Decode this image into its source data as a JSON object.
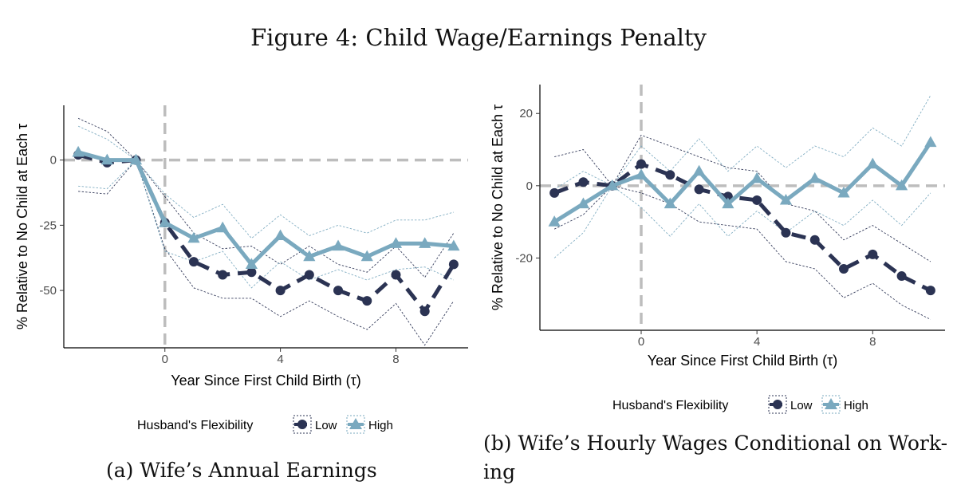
{
  "figure_title": "Figure 4: Child Wage/Earnings Penalty",
  "colors": {
    "low": "#2b3353",
    "high": "#7aa9bf",
    "ref": "#bdbdbd"
  },
  "chart_data": [
    {
      "type": "line",
      "caption": "(a) Wife’s Annual Earnings",
      "xlabel": "Year Since First Child Birth (τ)",
      "ylabel": "% Relative to No Child at Each τ",
      "xlim": [
        -3.5,
        10.5
      ],
      "ylim": [
        -72,
        21
      ],
      "xticks": [
        0,
        4,
        8
      ],
      "yticks": [
        0,
        -25,
        -50
      ],
      "ref_x": 0,
      "ref_y": 0,
      "grid": false,
      "legend": {
        "title": "Husband's Flexibility",
        "position": "bottom"
      },
      "x": [
        -3,
        -2,
        -1,
        0,
        1,
        2,
        3,
        4,
        5,
        6,
        7,
        8,
        9,
        10
      ],
      "series": [
        {
          "name": "Low",
          "marker": "circle",
          "linestyle": "dashed",
          "values": [
            2,
            -1,
            0,
            -24,
            -39,
            -44,
            -43,
            -50,
            -44,
            -50,
            -54,
            -44,
            -58,
            -40
          ],
          "ci_upper": [
            16,
            11,
            0,
            -14,
            -28,
            -34,
            -33,
            -40,
            -33,
            -40,
            -43,
            -33,
            -45,
            -28
          ],
          "ci_lower": [
            -12,
            -13,
            0,
            -34,
            -49,
            -53,
            -53,
            -60,
            -54,
            -60,
            -65,
            -55,
            -71,
            -54
          ]
        },
        {
          "name": "High",
          "marker": "triangle",
          "linestyle": "solid",
          "values": [
            3,
            0,
            0,
            -24,
            -30,
            -26,
            -40,
            -29,
            -37,
            -33,
            -37,
            -32,
            -32,
            -33
          ],
          "ci_upper": [
            13,
            8,
            0,
            -13,
            -22,
            -17,
            -30,
            -21,
            -29,
            -25,
            -28,
            -23,
            -23,
            -20
          ],
          "ci_lower": [
            -10,
            -11,
            0,
            -35,
            -39,
            -35,
            -49,
            -39,
            -46,
            -42,
            -46,
            -42,
            -41,
            -46
          ]
        }
      ]
    },
    {
      "type": "line",
      "caption": "(b) Wife’s Hourly Wages Conditional on Work-ing",
      "caption_lines": [
        "(b) Wife’s Hourly Wages Conditional on Work-",
        "ing"
      ],
      "xlabel": "Year Since First Child Birth (τ)",
      "ylabel": "% Relative to No Child at Each τ",
      "xlim": [
        -3.5,
        10.5
      ],
      "ylim": [
        -40,
        28
      ],
      "xticks": [
        0,
        4,
        8
      ],
      "yticks": [
        20,
        0,
        -20
      ],
      "ref_x": 0,
      "ref_y": 0,
      "grid": false,
      "legend": {
        "title": "Husband's Flexibility",
        "position": "bottom"
      },
      "x": [
        -3,
        -2,
        -1,
        0,
        1,
        2,
        3,
        4,
        5,
        6,
        7,
        8,
        9,
        10
      ],
      "series": [
        {
          "name": "Low",
          "marker": "circle",
          "linestyle": "dashed",
          "values": [
            -2,
            1,
            0,
            6,
            3,
            -1,
            -3,
            -4,
            -13,
            -15,
            -23,
            -19,
            -25,
            -29
          ],
          "ci_upper": [
            8,
            10,
            0,
            14,
            11,
            8,
            5,
            4,
            -5,
            -7,
            -15,
            -11,
            -16,
            -21
          ],
          "ci_lower": [
            -12,
            -8,
            0,
            -2,
            -5,
            -10,
            -11,
            -12,
            -21,
            -23,
            -31,
            -27,
            -33,
            -37
          ]
        },
        {
          "name": "High",
          "marker": "triangle",
          "linestyle": "solid",
          "values": [
            -10,
            -5,
            0,
            3,
            -5,
            4,
            -5,
            2,
            -4,
            2,
            -2,
            6,
            0,
            12
          ],
          "ci_upper": [
            -1,
            4,
            0,
            11,
            4,
            13,
            4,
            11,
            5,
            11,
            8,
            16,
            11,
            25
          ],
          "ci_lower": [
            -20,
            -13,
            0,
            -6,
            -14,
            -5,
            -14,
            -7,
            -13,
            -7,
            -11,
            -4,
            -11,
            -2
          ]
        }
      ]
    }
  ]
}
